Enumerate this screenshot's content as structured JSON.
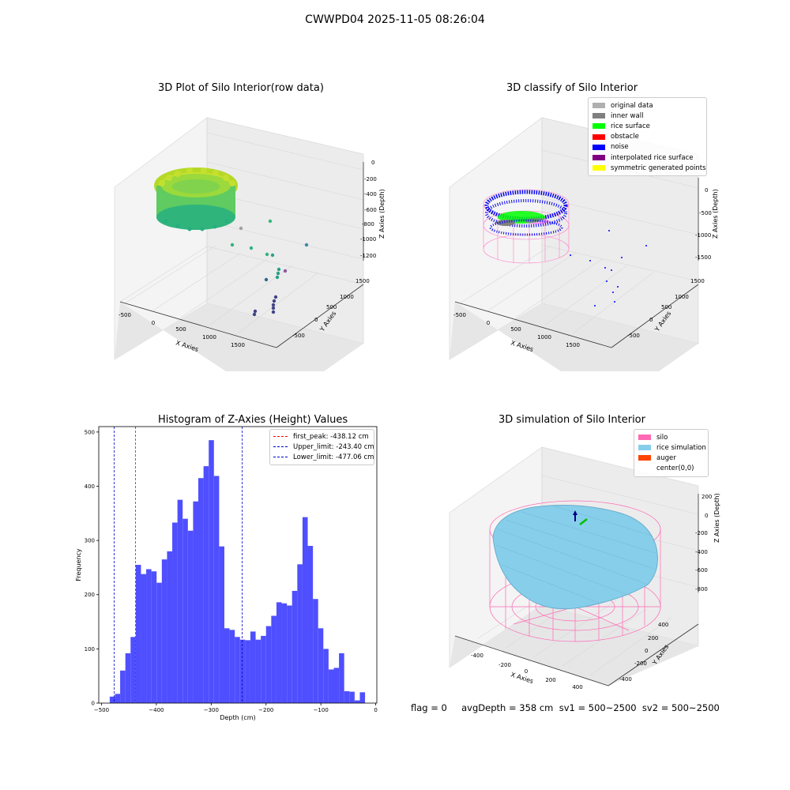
{
  "figure": {
    "suptitle": "CWWPD04 2025-11-05 08:26:04",
    "info_line": "flag = 0     avgDepth = 358 cm  sv1 = 500~2500  sv2 = 500~2500"
  },
  "chart_data": [
    {
      "type": "scatter",
      "title": "3D Plot of Silo Interior(row data)",
      "xlabel": "X Axies",
      "ylabel": "Y Axies",
      "zlabel": "Z Axies (Depth)",
      "x_ticks": [
        "-500",
        "0",
        "500",
        "1000",
        "1500"
      ],
      "y_ticks": [
        "-500",
        "0",
        "500",
        "1000",
        "1500"
      ],
      "z_ticks": [
        "0",
        "-200",
        "-400",
        "-600",
        "-800",
        "-1000",
        "-1200"
      ],
      "colormap": "viridis",
      "note_series": "dense ring of points near X=-400..0, Y=500..1000, Z=-200..-600 plus scattered outliers"
    },
    {
      "type": "scatter",
      "title": "3D classify of Silo Interior",
      "xlabel": "X Axies",
      "ylabel": "Y Axies",
      "zlabel": "Z Axies (Depth)",
      "x_ticks": [
        "-500",
        "0",
        "500",
        "1000",
        "1500"
      ],
      "y_ticks": [
        "-500",
        "0",
        "500",
        "1000",
        "1500"
      ],
      "z_ticks": [
        "0",
        "-500",
        "-1000",
        "-1500"
      ],
      "legend": [
        {
          "label": "original data",
          "color": "#b0b0b0"
        },
        {
          "label": "inner wall",
          "color": "#808080"
        },
        {
          "label": "rice surface",
          "color": "#00ff00"
        },
        {
          "label": "obstacle",
          "color": "#ff0000"
        },
        {
          "label": "noise",
          "color": "#0000ff"
        },
        {
          "label": "interpolated rice surface",
          "color": "#800080"
        },
        {
          "label": "symmetric generated points",
          "color": "#ffff00"
        }
      ]
    },
    {
      "type": "bar",
      "title": "Histogram of Z-Axies (Height) Values",
      "xlabel": "Depth (cm)",
      "ylabel": "Frequency",
      "xlim": [
        -505,
        2
      ],
      "ylim": [
        0,
        510
      ],
      "x_ticks": [
        -500,
        -400,
        -300,
        -200,
        -100,
        0
      ],
      "y_ticks": [
        0,
        100,
        200,
        300,
        400,
        500
      ],
      "bin_start": -485,
      "bin_width": 9.5,
      "values": [
        12,
        17,
        60,
        92,
        122,
        255,
        238,
        247,
        243,
        222,
        265,
        280,
        333,
        375,
        340,
        318,
        372,
        415,
        437,
        485,
        419,
        289,
        138,
        135,
        122,
        117,
        116,
        132,
        117,
        124,
        142,
        161,
        186,
        184,
        180,
        207,
        256,
        343,
        290,
        192,
        138,
        100,
        62,
        65,
        92,
        22,
        21,
        5,
        20
      ],
      "bar_color": "#4f4fff",
      "vlines": [
        {
          "label": "first_peak: -438.12 cm",
          "x": -438.12,
          "color": "#ff0000"
        },
        {
          "label": "Upper_limit: -243.40 cm",
          "x": -243.4,
          "color": "#0000cc"
        },
        {
          "label": "Lower_limit: -477.06 cm",
          "x": -477.06,
          "color": "#0000cc"
        }
      ]
    },
    {
      "type": "scatter",
      "title": "3D simulation of Silo Interior",
      "xlabel": "X Axies",
      "ylabel": "Y Axies",
      "zlabel": "Z Axies (Depth)",
      "x_ticks": [
        "-400",
        "-200",
        "0",
        "200",
        "400"
      ],
      "y_ticks": [
        "-400",
        "-200",
        "0",
        "200",
        "400"
      ],
      "z_ticks": [
        "200",
        "0",
        "-200",
        "-400",
        "-600",
        "-800"
      ],
      "legend": [
        {
          "label": "silo",
          "color": "#ff69b4"
        },
        {
          "label": "rice simulation",
          "color": "#87ceeb"
        },
        {
          "label": "auger",
          "color": "#ff4500"
        },
        {
          "label": "center(0,0)",
          "color": ""
        }
      ]
    }
  ]
}
